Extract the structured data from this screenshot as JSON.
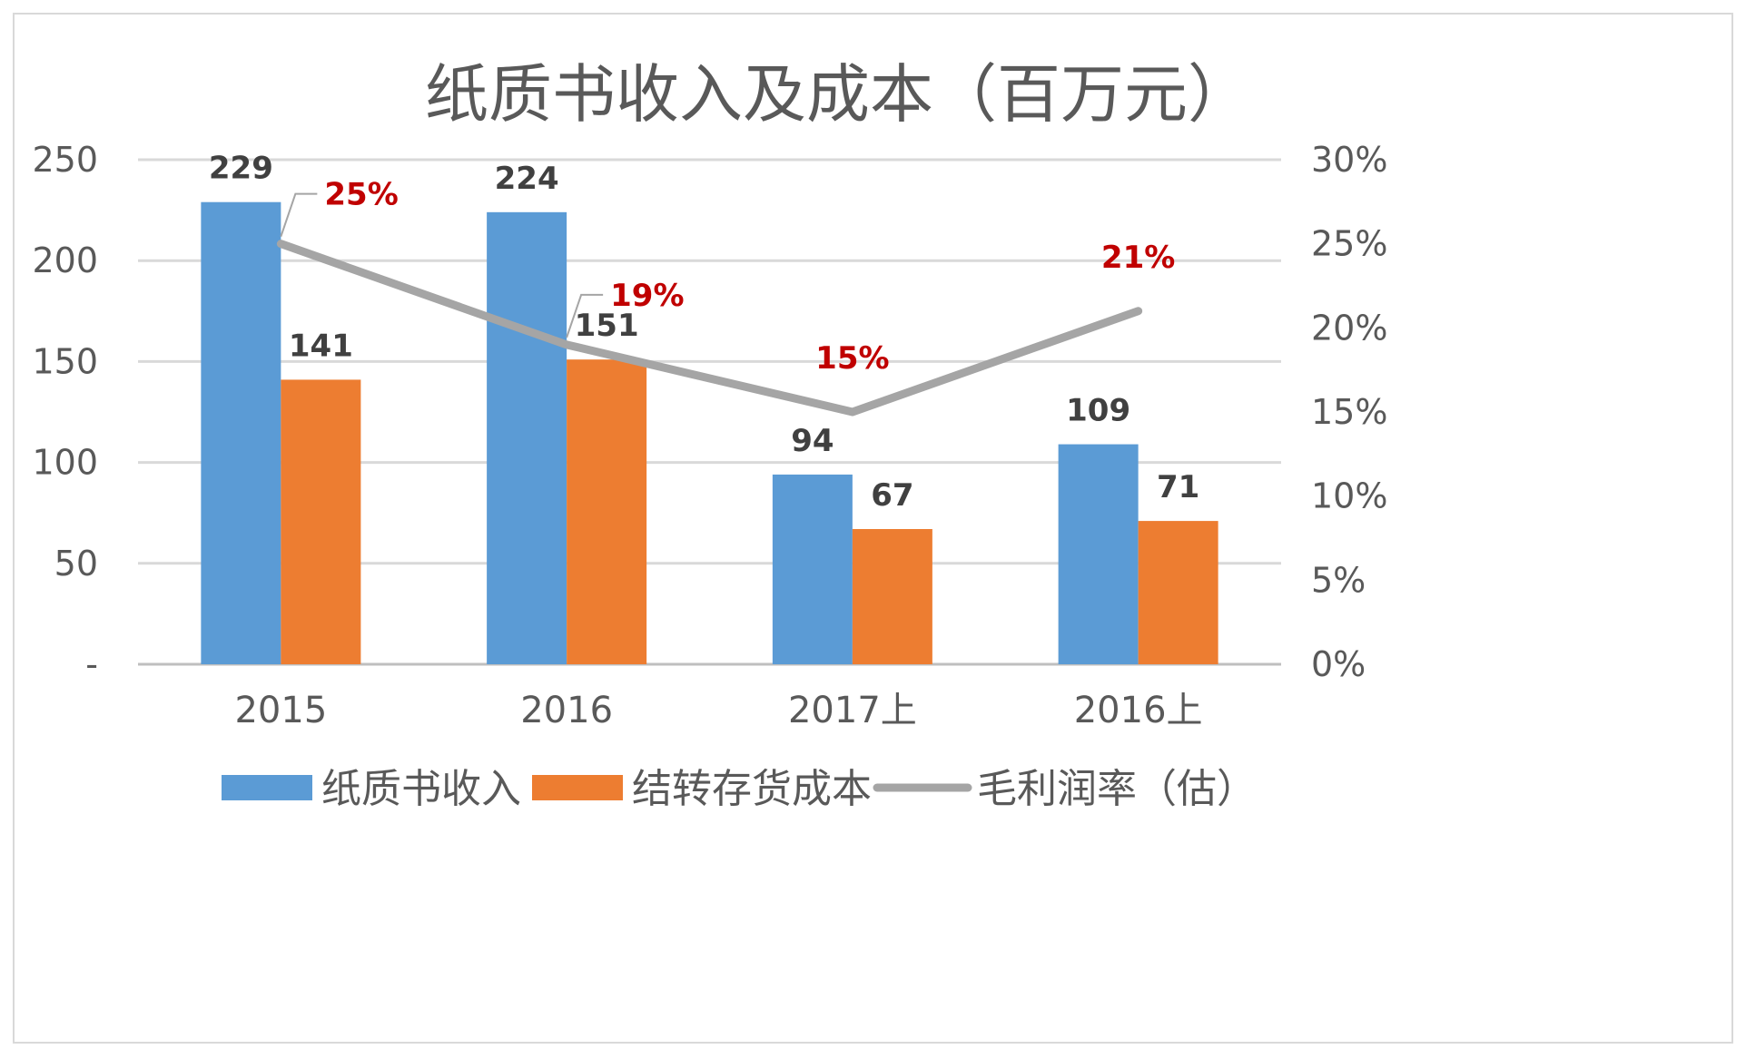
{
  "chart_data": {
    "type": "bar",
    "title": "纸质书收入及成本（百万元）",
    "categories": [
      "2015",
      "2016",
      "2017上",
      "2016上"
    ],
    "series": [
      {
        "name": "纸质书收入",
        "kind": "bar",
        "axis": "left",
        "color": "#5b9bd5",
        "values": [
          229,
          224,
          94,
          109
        ],
        "labels": [
          "229",
          "224",
          "94",
          "109"
        ]
      },
      {
        "name": "结转存货成本",
        "kind": "bar",
        "axis": "left",
        "color": "#ed7d31",
        "values": [
          141,
          151,
          67,
          71
        ],
        "labels": [
          "141",
          "151",
          "67",
          "71"
        ]
      },
      {
        "name": "毛利润率（估）",
        "kind": "line",
        "axis": "right",
        "color": "#a5a5a5",
        "values": [
          0.25,
          0.19,
          0.15,
          0.21
        ],
        "labels": [
          "25%",
          "19%",
          "15%",
          "21%"
        ]
      }
    ],
    "left_axis": {
      "ylim": [
        0,
        250
      ],
      "ticks": [
        0,
        50,
        100,
        150,
        200,
        250
      ],
      "tick_labels": [
        "-",
        "50",
        "100",
        "150",
        "200",
        "250"
      ]
    },
    "right_axis": {
      "ylim": [
        0,
        0.3
      ],
      "ticks": [
        0,
        0.05,
        0.1,
        0.15,
        0.2,
        0.25,
        0.3
      ],
      "tick_labels": [
        "0%",
        "5%",
        "10%",
        "15%",
        "20%",
        "25%",
        "30%"
      ]
    },
    "grid": true,
    "legend_position": "bottom",
    "label_color_bars": "#404040",
    "label_color_line": "#c00000"
  }
}
